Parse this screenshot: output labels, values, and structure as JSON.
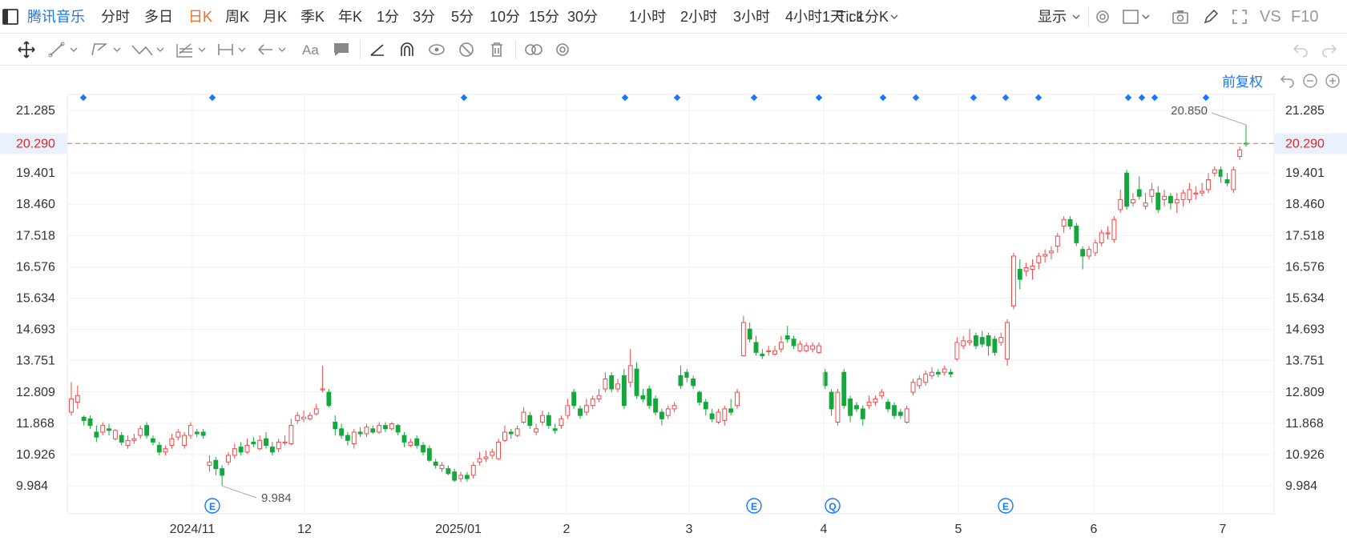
{
  "toolbar": {
    "sidebar_icon": "sidebar-toggle-icon",
    "stock_name": "腾讯音乐",
    "periods": [
      {
        "label": "分时"
      },
      {
        "label": "多日"
      },
      {
        "label": "日K",
        "active": true
      },
      {
        "label": "周K"
      },
      {
        "label": "月K"
      },
      {
        "label": "季K"
      },
      {
        "label": "年K"
      },
      {
        "label": "1分"
      },
      {
        "label": "3分"
      },
      {
        "label": "5分"
      },
      {
        "label": "10分"
      },
      {
        "label": "15分"
      },
      {
        "label": "30分"
      },
      {
        "label": "1小时"
      },
      {
        "label": "2小时"
      },
      {
        "label": "3小时"
      },
      {
        "label": "4小时"
      },
      {
        "label": "Tick"
      }
    ],
    "multi_period": "1天 : 1分K",
    "display_label": "显示",
    "vs_label": "VS",
    "f10_label": "F10"
  },
  "drawing_tools": [
    "move-icon",
    "line-tool-icon",
    "polyline-tool-icon",
    "wave-tool-icon",
    "fib-tool-icon",
    "range-tool-icon",
    "arrow-tool-icon",
    "text-tool-icon",
    "note-tool-icon",
    "angle-icon",
    "magnet-icon",
    "eye-icon",
    "hide-icon",
    "trash-icon",
    "link-icon",
    "settings-icon"
  ],
  "restore_label": "前复权",
  "colors": {
    "up": "#f04848",
    "down": "#13a83b",
    "accent": "#1677ff",
    "active": "#f5701d",
    "price_line": "#f5823a"
  },
  "chart_data": {
    "type": "candlestick",
    "y_ticks": [
      "21.285",
      "20.290",
      "19.401",
      "18.460",
      "17.518",
      "16.576",
      "15.634",
      "14.693",
      "13.751",
      "12.809",
      "11.868",
      "10.926",
      "9.984"
    ],
    "ylim": [
      9.2,
      21.9
    ],
    "x_ticks": [
      "2024/11",
      "12",
      "2025/01",
      "2",
      "3",
      "4",
      "5",
      "6",
      "7"
    ],
    "current_price": "20.290",
    "max_label": "20.850",
    "min_label": "9.984",
    "event_markers": [
      "E",
      "E",
      "Q",
      "E"
    ],
    "candles": [
      [
        12.2,
        12.6,
        13.1,
        12.1
      ],
      [
        12.5,
        12.7,
        13.0,
        12.3
      ],
      [
        12.05,
        11.95,
        12.1,
        11.8
      ],
      [
        12.0,
        11.8,
        12.1,
        11.7
      ],
      [
        11.6,
        11.45,
        11.8,
        11.3
      ],
      [
        11.6,
        11.8,
        11.9,
        11.5
      ],
      [
        11.7,
        11.65,
        11.85,
        11.5
      ],
      [
        11.4,
        11.65,
        11.7,
        11.35
      ],
      [
        11.5,
        11.3,
        11.6,
        11.2
      ],
      [
        11.2,
        11.35,
        11.5,
        11.1
      ],
      [
        11.35,
        11.4,
        11.55,
        11.25
      ],
      [
        11.5,
        11.7,
        11.8,
        11.4
      ],
      [
        11.8,
        11.5,
        11.9,
        11.4
      ],
      [
        11.4,
        11.3,
        11.5,
        11.2
      ],
      [
        11.2,
        11.0,
        11.3,
        10.9
      ],
      [
        11.0,
        11.1,
        11.2,
        10.9
      ],
      [
        11.2,
        11.4,
        11.55,
        11.1
      ],
      [
        11.45,
        11.6,
        11.7,
        11.35
      ],
      [
        11.2,
        11.5,
        11.6,
        11.1
      ],
      [
        11.5,
        11.8,
        11.9,
        11.4
      ],
      [
        11.6,
        11.55,
        11.7,
        11.45
      ],
      [
        11.6,
        11.5,
        11.7,
        11.4
      ],
      [
        10.6,
        10.7,
        10.9,
        10.4
      ],
      [
        10.75,
        10.5,
        10.85,
        10.3
      ],
      [
        10.5,
        10.3,
        10.6,
        9.98
      ],
      [
        10.7,
        10.9,
        11.0,
        10.6
      ],
      [
        10.9,
        11.1,
        11.25,
        10.8
      ],
      [
        11.15,
        11.0,
        11.3,
        10.9
      ],
      [
        11.0,
        11.2,
        11.4,
        10.95
      ],
      [
        11.3,
        11.25,
        11.45,
        11.15
      ],
      [
        11.1,
        11.35,
        11.5,
        11.05
      ],
      [
        11.4,
        11.2,
        11.6,
        11.1
      ],
      [
        11.15,
        11.0,
        11.3,
        10.9
      ],
      [
        11.1,
        11.3,
        11.4,
        11.0
      ],
      [
        11.3,
        11.3,
        11.5,
        11.2
      ],
      [
        11.25,
        11.8,
        12.0,
        11.2
      ],
      [
        11.95,
        12.1,
        12.2,
        11.85
      ],
      [
        12.0,
        12.05,
        12.25,
        11.9
      ],
      [
        12.0,
        12.1,
        12.2,
        11.95
      ],
      [
        12.15,
        12.3,
        12.45,
        12.1
      ],
      [
        12.9,
        12.9,
        13.6,
        12.8
      ],
      [
        12.8,
        12.4,
        12.9,
        12.35
      ],
      [
        11.9,
        11.7,
        12.1,
        11.5
      ],
      [
        11.7,
        11.5,
        11.85,
        11.4
      ],
      [
        11.5,
        11.35,
        11.6,
        11.2
      ],
      [
        11.25,
        11.6,
        11.7,
        11.1
      ],
      [
        11.6,
        11.55,
        11.75,
        11.45
      ],
      [
        11.55,
        11.75,
        11.85,
        11.45
      ],
      [
        11.7,
        11.6,
        11.8,
        11.55
      ],
      [
        11.6,
        11.8,
        11.9,
        11.55
      ],
      [
        11.8,
        11.7,
        11.9,
        11.6
      ],
      [
        11.7,
        11.85,
        11.9,
        11.65
      ],
      [
        11.8,
        11.6,
        11.85,
        11.5
      ],
      [
        11.5,
        11.3,
        11.6,
        11.15
      ],
      [
        11.2,
        11.3,
        11.4,
        11.15
      ],
      [
        11.4,
        11.2,
        11.5,
        11.1
      ],
      [
        11.2,
        11.0,
        11.3,
        10.9
      ],
      [
        11.1,
        10.75,
        11.2,
        10.7
      ],
      [
        10.7,
        10.6,
        10.8,
        10.5
      ],
      [
        10.5,
        10.6,
        10.7,
        10.4
      ],
      [
        10.5,
        10.35,
        10.6,
        10.3
      ],
      [
        10.4,
        10.15,
        10.5,
        10.1
      ],
      [
        10.2,
        10.3,
        10.4,
        10.1
      ],
      [
        10.3,
        10.2,
        10.4,
        10.1
      ],
      [
        10.3,
        10.6,
        10.7,
        10.2
      ],
      [
        10.7,
        10.8,
        11.0,
        10.6
      ],
      [
        10.8,
        10.85,
        11.05,
        10.7
      ],
      [
        10.9,
        11.0,
        11.1,
        10.8
      ],
      [
        10.8,
        11.3,
        11.4,
        10.75
      ],
      [
        11.35,
        11.6,
        11.8,
        11.3
      ],
      [
        11.6,
        11.55,
        11.7,
        11.4
      ],
      [
        11.5,
        11.7,
        11.8,
        11.45
      ],
      [
        11.9,
        12.2,
        12.35,
        11.85
      ],
      [
        12.1,
        11.8,
        12.2,
        11.7
      ],
      [
        11.6,
        11.7,
        11.85,
        11.5
      ],
      [
        11.9,
        12.1,
        12.25,
        11.8
      ],
      [
        12.1,
        11.8,
        12.2,
        11.7
      ],
      [
        11.7,
        11.65,
        11.85,
        11.55
      ],
      [
        11.8,
        12.0,
        12.1,
        11.7
      ],
      [
        12.1,
        12.4,
        12.6,
        12.0
      ],
      [
        12.8,
        12.4,
        12.9,
        12.3
      ],
      [
        12.3,
        12.1,
        12.4,
        12.0
      ],
      [
        12.2,
        12.4,
        12.6,
        12.1
      ],
      [
        12.4,
        12.6,
        12.7,
        12.3
      ],
      [
        12.6,
        12.7,
        12.9,
        12.5
      ],
      [
        12.9,
        13.2,
        13.4,
        12.8
      ],
      [
        13.3,
        12.9,
        13.4,
        12.8
      ],
      [
        12.9,
        13.05,
        13.2,
        12.8
      ],
      [
        13.3,
        12.4,
        13.5,
        12.3
      ],
      [
        13.1,
        13.6,
        14.1,
        12.95
      ],
      [
        13.5,
        12.7,
        13.7,
        12.6
      ],
      [
        12.7,
        12.6,
        12.9,
        12.5
      ],
      [
        12.9,
        12.4,
        13.0,
        12.3
      ],
      [
        12.6,
        12.2,
        12.7,
        12.1
      ],
      [
        12.2,
        12.0,
        12.3,
        11.8
      ],
      [
        12.1,
        12.3,
        12.4,
        12.0
      ],
      [
        12.3,
        12.4,
        12.5,
        12.2
      ],
      [
        13.3,
        13.0,
        13.6,
        12.9
      ],
      [
        13.4,
        13.25,
        13.5,
        13.1
      ],
      [
        13.2,
        13.0,
        13.3,
        12.9
      ],
      [
        12.8,
        12.5,
        12.85,
        12.4
      ],
      [
        12.5,
        12.3,
        12.6,
        12.1
      ],
      [
        12.15,
        12.0,
        12.3,
        11.9
      ],
      [
        11.9,
        12.2,
        12.3,
        11.85
      ],
      [
        11.95,
        12.3,
        12.4,
        11.8
      ],
      [
        12.3,
        12.2,
        12.6,
        12.1
      ],
      [
        12.4,
        12.8,
        12.9,
        12.3
      ],
      [
        13.9,
        14.9,
        15.1,
        13.9
      ],
      [
        14.7,
        14.4,
        14.9,
        14.3
      ],
      [
        14.3,
        14.0,
        14.5,
        13.9
      ],
      [
        13.95,
        13.9,
        14.1,
        13.8
      ],
      [
        14.05,
        14.05,
        14.2,
        13.9
      ],
      [
        13.95,
        14.05,
        14.2,
        13.9
      ],
      [
        14.1,
        14.3,
        14.5,
        14.0
      ],
      [
        14.5,
        14.4,
        14.8,
        14.3
      ],
      [
        14.4,
        14.2,
        14.5,
        14.1
      ],
      [
        14.05,
        14.25,
        14.35,
        14.0
      ],
      [
        14.05,
        14.2,
        14.3,
        14.0
      ],
      [
        14.1,
        14.2,
        14.3,
        14.0
      ],
      [
        14.0,
        14.2,
        14.3,
        13.95
      ],
      [
        13.4,
        13.0,
        13.5,
        12.9
      ],
      [
        12.8,
        12.3,
        12.9,
        12.1
      ],
      [
        11.9,
        12.8,
        12.9,
        11.8
      ],
      [
        13.4,
        12.4,
        13.5,
        12.3
      ],
      [
        12.6,
        12.1,
        12.7,
        11.9
      ],
      [
        12.4,
        12.3,
        12.5,
        12.2
      ],
      [
        12.3,
        12.0,
        12.4,
        11.8
      ],
      [
        12.4,
        12.5,
        12.7,
        12.3
      ],
      [
        12.5,
        12.6,
        12.7,
        12.4
      ],
      [
        12.7,
        12.8,
        12.9,
        12.6
      ],
      [
        12.5,
        12.3,
        12.6,
        12.2
      ],
      [
        12.4,
        12.1,
        12.5,
        12.0
      ],
      [
        12.2,
        12.1,
        12.3,
        12.0
      ],
      [
        11.9,
        12.3,
        12.4,
        11.85
      ],
      [
        12.8,
        13.1,
        13.2,
        12.7
      ],
      [
        13.0,
        13.2,
        13.3,
        12.9
      ],
      [
        13.1,
        13.35,
        13.45,
        13.0
      ],
      [
        13.3,
        13.4,
        13.55,
        13.2
      ],
      [
        13.4,
        13.35,
        13.5,
        13.25
      ],
      [
        13.4,
        13.5,
        13.6,
        13.3
      ],
      [
        13.4,
        13.35,
        13.5,
        13.25
      ],
      [
        13.8,
        14.3,
        14.45,
        13.75
      ],
      [
        14.2,
        14.35,
        14.5,
        14.1
      ],
      [
        14.3,
        14.35,
        14.7,
        14.2
      ],
      [
        14.5,
        14.2,
        14.6,
        14.1
      ],
      [
        14.45,
        14.25,
        14.65,
        14.15
      ],
      [
        14.5,
        14.2,
        14.6,
        13.9
      ],
      [
        14.4,
        14.0,
        14.5,
        13.9
      ],
      [
        14.3,
        14.45,
        14.6,
        14.2
      ],
      [
        13.8,
        14.9,
        15.0,
        13.6
      ],
      [
        15.4,
        16.9,
        17.0,
        15.3
      ],
      [
        16.5,
        16.2,
        16.8,
        15.9
      ],
      [
        16.45,
        16.55,
        16.7,
        16.3
      ],
      [
        16.5,
        16.6,
        16.8,
        16.2
      ],
      [
        16.7,
        16.9,
        17.0,
        16.5
      ],
      [
        16.9,
        16.95,
        17.1,
        16.7
      ],
      [
        17.0,
        17.05,
        17.2,
        16.8
      ],
      [
        17.2,
        17.5,
        17.6,
        17.0
      ],
      [
        17.8,
        18.0,
        18.1,
        17.6
      ],
      [
        18.0,
        17.8,
        18.1,
        17.7
      ],
      [
        17.8,
        17.3,
        17.9,
        17.2
      ],
      [
        17.1,
        16.9,
        17.2,
        16.5
      ],
      [
        16.9,
        17.1,
        17.2,
        16.8
      ],
      [
        17.0,
        17.3,
        17.4,
        16.9
      ],
      [
        17.3,
        17.6,
        17.7,
        17.2
      ],
      [
        17.6,
        17.6,
        17.8,
        17.4
      ],
      [
        17.4,
        18.0,
        18.1,
        17.3
      ],
      [
        18.3,
        18.6,
        18.9,
        18.2
      ],
      [
        19.4,
        18.4,
        19.5,
        18.3
      ],
      [
        18.5,
        18.6,
        18.8,
        18.4
      ],
      [
        18.9,
        18.7,
        19.3,
        18.6
      ],
      [
        18.4,
        18.5,
        18.8,
        18.3
      ],
      [
        18.7,
        18.9,
        19.1,
        18.5
      ],
      [
        18.8,
        18.3,
        19.0,
        18.2
      ],
      [
        18.6,
        18.7,
        18.9,
        18.4
      ],
      [
        18.7,
        18.5,
        18.8,
        18.3
      ],
      [
        18.5,
        18.6,
        18.8,
        18.2
      ],
      [
        18.6,
        18.8,
        18.9,
        18.4
      ],
      [
        18.6,
        18.9,
        19.1,
        18.5
      ],
      [
        18.8,
        18.8,
        19.0,
        18.6
      ],
      [
        18.8,
        18.85,
        19.1,
        18.7
      ],
      [
        18.9,
        19.2,
        19.4,
        18.8
      ],
      [
        19.4,
        19.5,
        19.6,
        19.3
      ],
      [
        19.5,
        19.3,
        19.6,
        19.1
      ],
      [
        19.2,
        19.1,
        19.4,
        19.0
      ],
      [
        18.9,
        19.5,
        19.6,
        18.8
      ],
      [
        19.9,
        20.1,
        20.2,
        19.8
      ],
      [
        20.3,
        20.29,
        20.85,
        20.2
      ]
    ]
  }
}
